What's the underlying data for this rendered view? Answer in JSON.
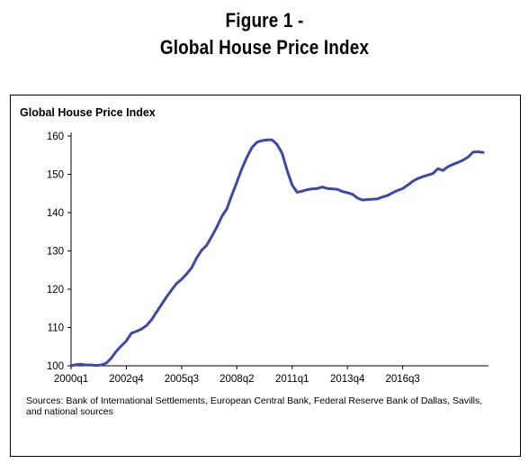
{
  "figure": {
    "title_line1": "Figure 1 -",
    "title_line2": "Global House Price Index",
    "sources": "Sources: Bank of International Settlements, European Central Bank, Federal Reserve Bank of Dallas, Savills, and national sources"
  },
  "chart_data": {
    "type": "line",
    "title": "Global House Price Index",
    "xlabel": "",
    "ylabel": "",
    "ylim": [
      100,
      160
    ],
    "yticks": [
      100,
      110,
      120,
      130,
      140,
      150,
      160
    ],
    "xtick_labels": [
      "2000q1",
      "2002q4",
      "2005q3",
      "2008q2",
      "2011q1",
      "2013q4",
      "2016q3"
    ],
    "grid": false,
    "legend": "none",
    "line_color": "#3d4a9e",
    "series": [
      {
        "values": [
          100.0,
          100.3,
          100.4,
          100.2,
          100.2,
          100.1,
          100.2,
          100.7,
          102.0,
          103.8,
          105.2,
          106.5,
          108.5,
          109.0,
          109.6,
          110.5,
          112.0,
          114.0,
          116.0,
          118.0,
          119.8,
          121.5,
          122.6,
          124.0,
          125.6,
          128.2,
          130.2,
          131.5,
          133.8,
          136.2,
          139.0,
          141.0,
          144.6,
          148.0,
          151.5,
          154.5,
          157.0,
          158.4,
          158.8,
          159.0,
          159.0,
          157.8,
          155.5,
          151.0,
          147.2,
          145.3,
          145.6,
          146.0,
          146.2,
          146.3,
          146.7,
          146.3,
          146.2,
          146.1,
          145.5,
          145.2,
          144.8,
          143.8,
          143.3,
          143.4,
          143.5,
          143.6,
          144.1,
          144.5,
          145.2,
          145.8,
          146.3,
          147.2,
          148.2,
          148.9,
          149.4,
          149.8,
          150.2,
          151.5,
          151.0,
          152.0,
          152.6,
          153.1,
          153.7,
          154.5,
          155.8,
          155.9,
          155.7
        ]
      }
    ]
  }
}
